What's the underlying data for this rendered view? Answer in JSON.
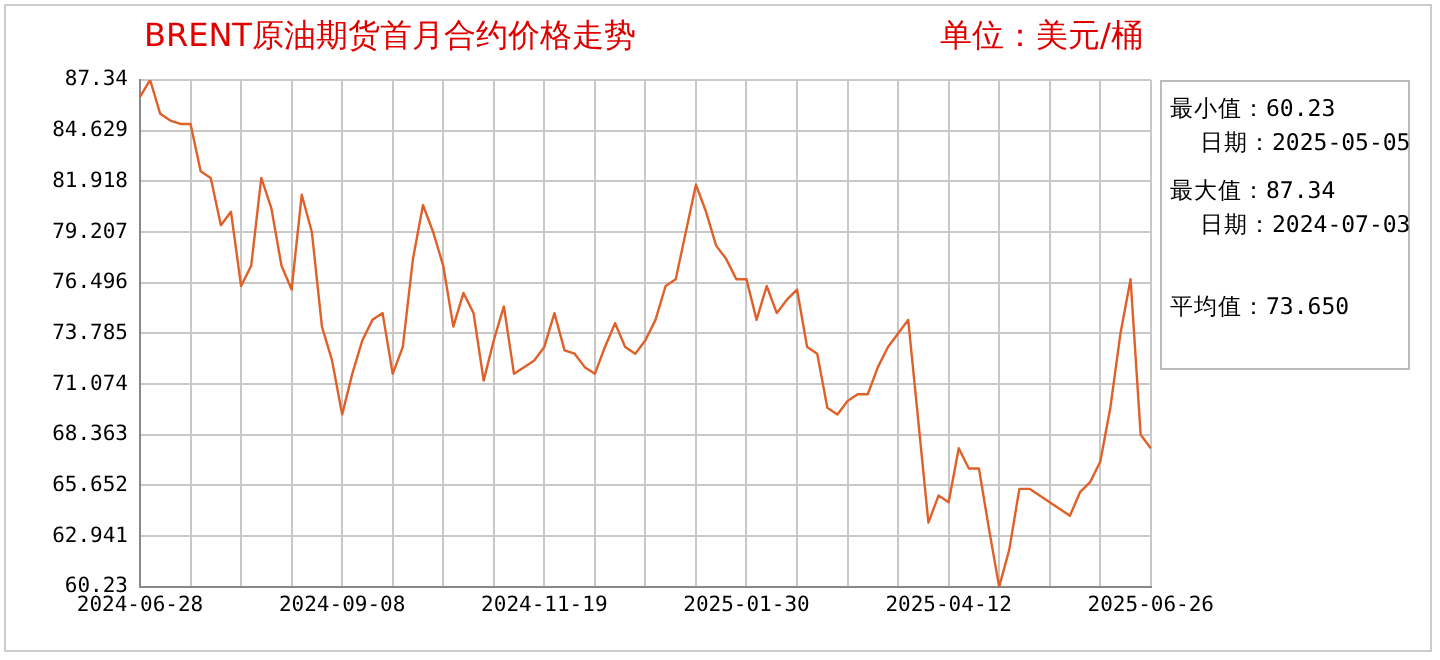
{
  "chart_data": {
    "type": "line",
    "title": "BRENT原油期货首月合约价格走势",
    "subtitle": "单位：美元/桶",
    "categories": [
      "2024-06-28",
      null,
      null,
      null,
      null,
      null,
      null,
      null,
      null,
      null,
      null,
      null,
      null,
      null,
      null,
      null,
      null,
      null,
      null,
      null,
      "2024-09-08",
      null,
      null,
      null,
      null,
      null,
      null,
      null,
      null,
      null,
      null,
      null,
      null,
      null,
      null,
      null,
      null,
      null,
      null,
      null,
      "2024-11-19",
      null,
      null,
      null,
      null,
      null,
      null,
      null,
      null,
      null,
      null,
      null,
      null,
      null,
      null,
      null,
      null,
      null,
      null,
      null,
      "2025-01-30",
      null,
      null,
      null,
      null,
      null,
      null,
      null,
      null,
      null,
      null,
      null,
      null,
      null,
      null,
      null,
      null,
      null,
      null,
      null,
      "2025-04-12",
      null,
      null,
      null,
      null,
      null,
      null,
      null,
      null,
      null,
      null,
      null,
      null,
      null,
      null,
      null,
      null,
      null,
      null,
      null,
      "2025-06-26"
    ],
    "series": [
      {
        "color": "#e0602a",
        "values": [
          86.44,
          87.34,
          85.53,
          85.17,
          84.99,
          84.99,
          82.46,
          82.1,
          79.57,
          80.29,
          76.32,
          77.4,
          82.1,
          80.47,
          77.4,
          76.13,
          81.2,
          79.21,
          74.15,
          72.34,
          69.45,
          71.62,
          73.42,
          74.51,
          74.87,
          71.62,
          73.06,
          77.76,
          80.65,
          79.21,
          77.4,
          74.15,
          75.95,
          74.87,
          71.26,
          73.42,
          75.23,
          71.62,
          71.98,
          72.34,
          73.06,
          74.87,
          72.88,
          72.7,
          71.98,
          71.62,
          73.06,
          74.33,
          73.06,
          72.7,
          73.42,
          74.51,
          76.32,
          76.68,
          79.21,
          81.74,
          80.29,
          78.48,
          77.76,
          76.68,
          76.68,
          74.51,
          76.32,
          74.87,
          75.59,
          76.13,
          73.06,
          72.7,
          69.81,
          69.45,
          70.17,
          70.53,
          70.53,
          71.98,
          73.06,
          73.78,
          74.51,
          69.09,
          63.66,
          65.11,
          64.75,
          67.64,
          66.56,
          66.56,
          63.3,
          60.23,
          62.22,
          65.47,
          65.47,
          65.11,
          64.75,
          64.39,
          64.03,
          65.29,
          65.83,
          66.92,
          69.81,
          73.78,
          76.68,
          68.36,
          67.64
        ]
      }
    ],
    "ylim": [
      60.23,
      87.34
    ],
    "yticks": [
      60.23,
      62.941,
      65.652,
      68.363,
      71.074,
      73.785,
      76.496,
      79.207,
      81.918,
      84.629,
      87.34
    ],
    "grid": true,
    "legend": false,
    "marker": "none",
    "line_style": "solid",
    "annotations": [
      "最小值：60.23",
      "日期：2025-05-05",
      "最大值：87.34",
      "日期：2024-07-03",
      "平均值：73.650"
    ]
  }
}
